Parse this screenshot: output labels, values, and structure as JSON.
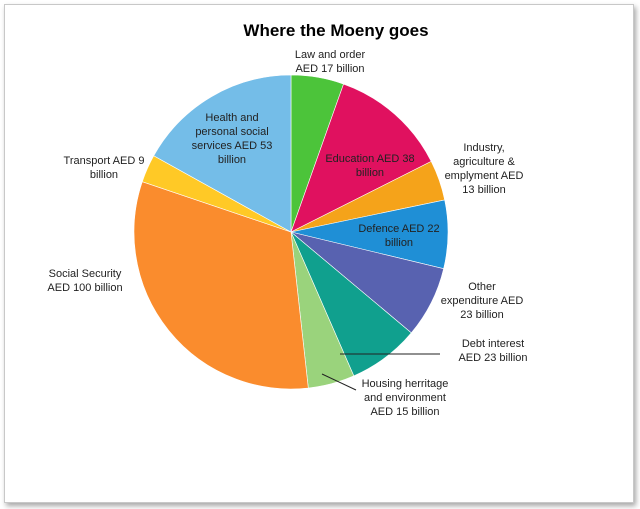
{
  "chart_data": {
    "type": "pie",
    "title": "Where the Moeny goes",
    "start_angle_deg": 0,
    "direction": "clockwise",
    "slices": [
      {
        "label": "Law and order",
        "lines": [
          "Law and order",
          "AED 17 billion"
        ],
        "value": 17,
        "color": "#4cc43a"
      },
      {
        "label": "Education",
        "lines": [
          "Education AED 38",
          "billion"
        ],
        "value": 38,
        "color": "#e0115f"
      },
      {
        "label": "Industry, agriculture & emplyment",
        "lines": [
          "Industry,",
          "agriculture &",
          "emplyment AED",
          "13 billion"
        ],
        "value": 13,
        "color": "#f5a31a"
      },
      {
        "label": "Defence",
        "lines": [
          "Defence AED 22",
          "billion"
        ],
        "value": 22,
        "color": "#1f8fd6"
      },
      {
        "label": "Other expenditure",
        "lines": [
          "Other",
          "expenditure AED",
          "23 billion"
        ],
        "value": 23,
        "color": "#5862b0"
      },
      {
        "label": "Debt interest",
        "lines": [
          "Debt interest",
          "AED 23 billion"
        ],
        "value": 23,
        "color": "#10a08e"
      },
      {
        "label": "Housing herritage and environment",
        "lines": [
          "Housing herritage",
          "and environment",
          "AED 15 billion"
        ],
        "value": 15,
        "color": "#9ad37c"
      },
      {
        "label": "Social Security",
        "lines": [
          "Social Security",
          "AED 100 billion"
        ],
        "value": 100,
        "color": "#fa8c2d"
      },
      {
        "label": "Transport",
        "lines": [
          "Transport AED 9",
          "billion"
        ],
        "value": 9,
        "color": "#ffc926"
      },
      {
        "label": "Health and personal social services",
        "lines": [
          "Health and",
          "personal social",
          "services AED 53",
          "billion"
        ],
        "value": 53,
        "color": "#74bde8"
      }
    ]
  }
}
